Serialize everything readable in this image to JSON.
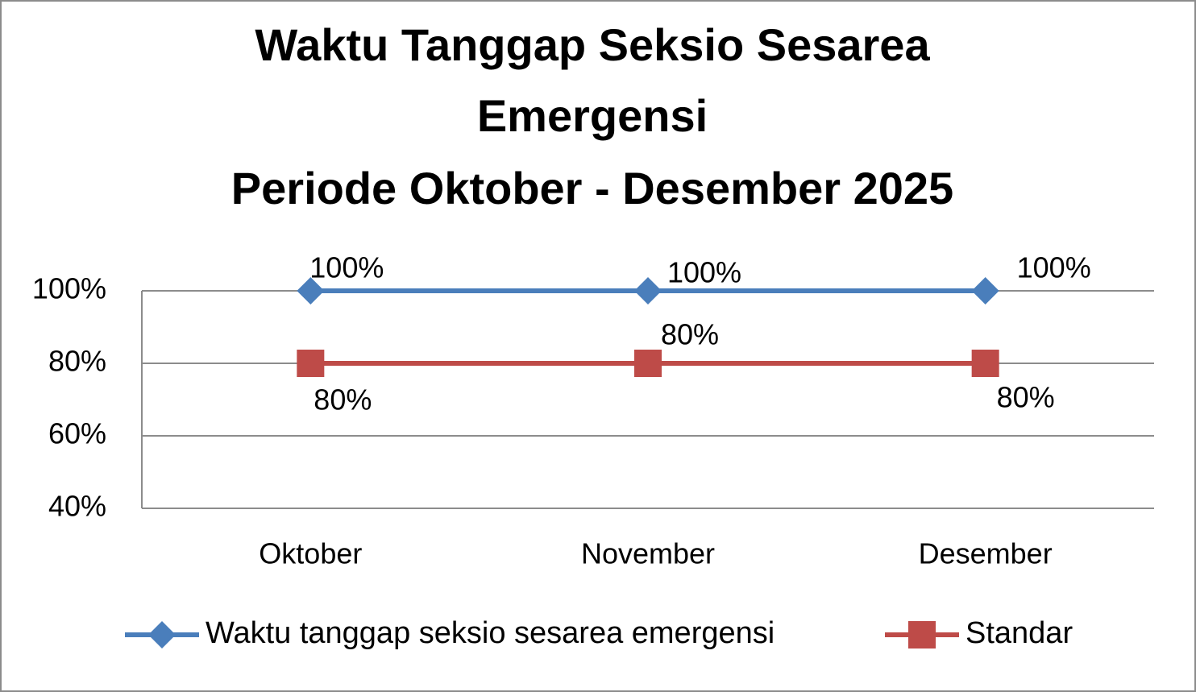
{
  "chart_data": {
    "type": "line",
    "title": [
      "Waktu Tanggap Seksio Sesarea",
      "Emergensi",
      "Periode Oktober - Desember 2025"
    ],
    "categories": [
      "Oktober",
      "November",
      "Desember"
    ],
    "series": [
      {
        "name": "Waktu tanggap seksio sesarea emergensi",
        "color": "#4a7ebb",
        "marker": "diamond",
        "values": [
          100,
          100,
          100
        ],
        "value_labels": [
          "100%",
          "100%",
          "100%"
        ]
      },
      {
        "name": "Standar",
        "color": "#be4b48",
        "marker": "square",
        "values": [
          80,
          80,
          80
        ],
        "value_labels": [
          "80%",
          "80%",
          "80%"
        ]
      }
    ],
    "ylim": [
      40,
      100
    ],
    "yticks": [
      {
        "value": 40,
        "label": "40%"
      },
      {
        "value": 60,
        "label": "60%"
      },
      {
        "value": 80,
        "label": "80%"
      },
      {
        "value": 100,
        "label": "100%"
      }
    ],
    "grid": true,
    "legend": "bottom"
  }
}
